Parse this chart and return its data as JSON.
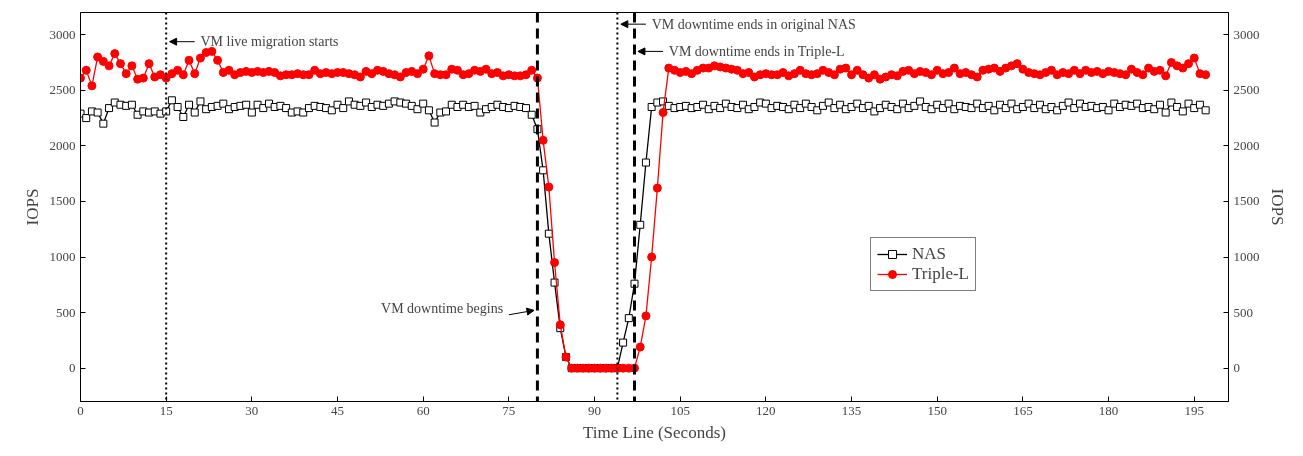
{
  "chart_data": {
    "type": "line",
    "xlabel": "Time Line (Seconds)",
    "ylabel": "IOPS",
    "y2label": "IOPS",
    "x": [
      0,
      1,
      2,
      3,
      4,
      5,
      6,
      7,
      8,
      9,
      10,
      11,
      12,
      13,
      14,
      15,
      16,
      17,
      18,
      19,
      20,
      21,
      22,
      23,
      24,
      25,
      26,
      27,
      28,
      29,
      30,
      31,
      32,
      33,
      34,
      35,
      36,
      37,
      38,
      39,
      40,
      41,
      42,
      43,
      44,
      45,
      46,
      47,
      48,
      49,
      50,
      51,
      52,
      53,
      54,
      55,
      56,
      57,
      58,
      59,
      60,
      61,
      62,
      63,
      64,
      65,
      66,
      67,
      68,
      69,
      70,
      71,
      72,
      73,
      74,
      75,
      76,
      77,
      78,
      79,
      80,
      81,
      82,
      83,
      84,
      85,
      86,
      87,
      88,
      89,
      90,
      91,
      92,
      93,
      94,
      95,
      96,
      97,
      98,
      99,
      100,
      101,
      102,
      103,
      104,
      105,
      106,
      107,
      108,
      109,
      110,
      111,
      112,
      113,
      114,
      115,
      116,
      117,
      118,
      119,
      120,
      121,
      122,
      123,
      124,
      125,
      126,
      127,
      128,
      129,
      130,
      131,
      132,
      133,
      134,
      135,
      136,
      137,
      138,
      139,
      140,
      141,
      142,
      143,
      144,
      145,
      146,
      147,
      148,
      149,
      150,
      151,
      152,
      153,
      154,
      155,
      156,
      157,
      158,
      159,
      160,
      161,
      162,
      163,
      164,
      165,
      166,
      167,
      168,
      169,
      170,
      171,
      172,
      173,
      174,
      175,
      176,
      177,
      178,
      179,
      180,
      181,
      182,
      183,
      184,
      185,
      186,
      187,
      188,
      189,
      190,
      191,
      192,
      193,
      194,
      195,
      196,
      197
    ],
    "series": [
      {
        "name": "NAS",
        "color": "#000000",
        "marker": "square",
        "values": [
          2290,
          2250,
          2310,
          2300,
          2200,
          2340,
          2390,
          2370,
          2360,
          2370,
          2280,
          2310,
          2300,
          2310,
          2290,
          2310,
          2410,
          2350,
          2260,
          2370,
          2300,
          2400,
          2330,
          2350,
          2360,
          2380,
          2330,
          2350,
          2360,
          2370,
          2300,
          2370,
          2340,
          2380,
          2350,
          2360,
          2340,
          2300,
          2310,
          2300,
          2340,
          2360,
          2350,
          2340,
          2320,
          2370,
          2340,
          2400,
          2370,
          2360,
          2390,
          2350,
          2370,
          2360,
          2380,
          2400,
          2390,
          2380,
          2360,
          2330,
          2380,
          2320,
          2210,
          2300,
          2310,
          2370,
          2350,
          2370,
          2350,
          2360,
          2300,
          2330,
          2350,
          2370,
          2350,
          2340,
          2360,
          2350,
          2340,
          2280,
          2150,
          1780,
          1210,
          770,
          360,
          100,
          0,
          0,
          0,
          0,
          0,
          0,
          0,
          0,
          0,
          230,
          450,
          760,
          1290,
          1850,
          2350,
          2390,
          2400,
          2360,
          2340,
          2350,
          2360,
          2340,
          2350,
          2370,
          2330,
          2360,
          2340,
          2380,
          2350,
          2340,
          2370,
          2330,
          2350,
          2390,
          2380,
          2340,
          2360,
          2350,
          2330,
          2370,
          2340,
          2380,
          2350,
          2320,
          2360,
          2390,
          2340,
          2370,
          2330,
          2350,
          2380,
          2340,
          2360,
          2310,
          2340,
          2370,
          2350,
          2330,
          2380,
          2340,
          2360,
          2400,
          2350,
          2330,
          2370,
          2340,
          2380,
          2330,
          2360,
          2350,
          2340,
          2380,
          2340,
          2360,
          2320,
          2370,
          2340,
          2380,
          2330,
          2350,
          2380,
          2340,
          2370,
          2330,
          2350,
          2320,
          2360,
          2390,
          2340,
          2380,
          2350,
          2360,
          2340,
          2350,
          2320,
          2380,
          2350,
          2370,
          2360,
          2380,
          2340,
          2350,
          2330,
          2370,
          2300,
          2390,
          2350,
          2310,
          2380,
          2340,
          2370,
          2320
        ]
      },
      {
        "name": "Triple-L",
        "color": "#ff0000",
        "marker": "circle",
        "values": [
          2610,
          2680,
          2540,
          2800,
          2760,
          2720,
          2830,
          2740,
          2650,
          2720,
          2600,
          2610,
          2740,
          2620,
          2640,
          2610,
          2650,
          2680,
          2640,
          2770,
          2650,
          2790,
          2840,
          2850,
          2770,
          2660,
          2680,
          2640,
          2660,
          2670,
          2660,
          2670,
          2660,
          2670,
          2660,
          2630,
          2640,
          2640,
          2650,
          2640,
          2640,
          2680,
          2650,
          2660,
          2650,
          2660,
          2660,
          2650,
          2640,
          2620,
          2670,
          2650,
          2680,
          2670,
          2650,
          2640,
          2620,
          2660,
          2670,
          2650,
          2690,
          2810,
          2650,
          2640,
          2640,
          2690,
          2680,
          2640,
          2650,
          2680,
          2670,
          2690,
          2650,
          2660,
          2630,
          2640,
          2630,
          2630,
          2640,
          2680,
          2610,
          2050,
          1630,
          950,
          390,
          100,
          0,
          0,
          0,
          0,
          0,
          0,
          0,
          0,
          0,
          0,
          0,
          0,
          190,
          470,
          1000,
          1620,
          2300,
          2700,
          2680,
          2660,
          2670,
          2650,
          2680,
          2700,
          2700,
          2720,
          2710,
          2700,
          2690,
          2680,
          2650,
          2660,
          2620,
          2640,
          2650,
          2640,
          2640,
          2660,
          2630,
          2650,
          2680,
          2650,
          2640,
          2650,
          2680,
          2660,
          2640,
          2690,
          2700,
          2640,
          2680,
          2640,
          2610,
          2640,
          2600,
          2620,
          2640,
          2630,
          2670,
          2680,
          2650,
          2670,
          2660,
          2640,
          2680,
          2650,
          2660,
          2700,
          2650,
          2660,
          2640,
          2620,
          2680,
          2690,
          2700,
          2670,
          2700,
          2720,
          2740,
          2690,
          2660,
          2650,
          2640,
          2660,
          2680,
          2640,
          2660,
          2650,
          2680,
          2650,
          2680,
          2660,
          2670,
          2650,
          2670,
          2660,
          2650,
          2640,
          2690,
          2660,
          2640,
          2700,
          2670,
          2680,
          2630,
          2750,
          2720,
          2700,
          2740,
          2790,
          2650,
          2640
        ]
      }
    ],
    "xlim": [
      0,
      201
    ],
    "xticks": [
      0,
      15,
      30,
      45,
      60,
      75,
      90,
      105,
      120,
      135,
      150,
      165,
      180,
      195
    ],
    "ylim": [
      -300,
      3200
    ],
    "yticks": [
      0,
      500,
      1000,
      1500,
      2000,
      2500,
      3000
    ],
    "y2lim": [
      -300,
      3200
    ],
    "y2ticks": [
      0,
      500,
      1000,
      1500,
      2000,
      2500,
      3000
    ],
    "ref_lines": [
      {
        "axis": "x",
        "value": 15,
        "label": "VM live migration starts",
        "line_style": "dotted"
      },
      {
        "axis": "x",
        "value": 80,
        "label": "VM downtime begins",
        "line_style": "dashed"
      },
      {
        "axis": "x",
        "value": 94,
        "label": "VM downtime ends in original NAS",
        "line_style": "dotted"
      },
      {
        "axis": "x",
        "value": 97,
        "label": "VM downtime ends in Triple-L",
        "line_style": "dashed"
      }
    ],
    "legend": "right",
    "grid": false,
    "line_style": "solid"
  }
}
